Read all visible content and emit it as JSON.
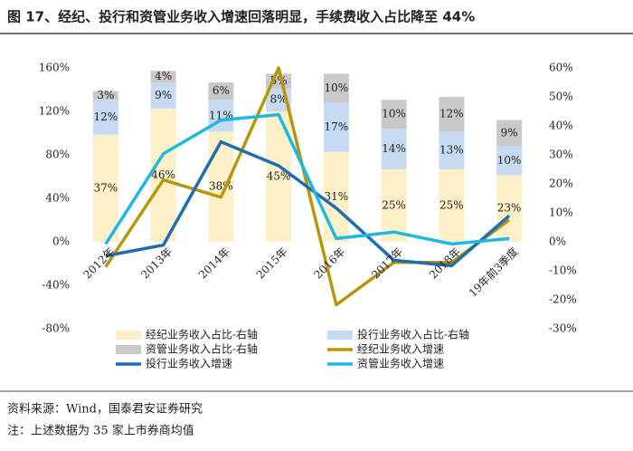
{
  "chart_data": {
    "type": "bar",
    "title": "图 17、经纪、投行和资管业务收入增速回落明显，手续费收入占比降至 44%",
    "source": "资料来源：Wind，国泰君安证券研究",
    "note": "注：上述数据为 35 家上市券商均值",
    "categories": [
      "2012年",
      "2013年",
      "2014年",
      "2015年",
      "2016年",
      "2017年",
      "2018年",
      "19年前3季度"
    ],
    "ylim": [
      -80,
      160
    ],
    "yticks": [
      {
        "value": -80,
        "label": "-80%"
      },
      {
        "value": -40,
        "label": "-40%"
      },
      {
        "value": 0,
        "label": "0%"
      },
      {
        "value": 40,
        "label": "40%"
      },
      {
        "value": 80,
        "label": "80%"
      },
      {
        "value": 120,
        "label": "120%"
      },
      {
        "value": 160,
        "label": "160%"
      }
    ],
    "y2lim": [
      -30,
      60
    ],
    "y2ticks": [
      {
        "value": -30,
        "label": "-30%"
      },
      {
        "value": -20,
        "label": "-20%"
      },
      {
        "value": -10,
        "label": "-10%"
      },
      {
        "value": 0,
        "label": "0%"
      },
      {
        "value": 10,
        "label": "10%"
      },
      {
        "value": 20,
        "label": "20%"
      },
      {
        "value": 30,
        "label": "30%"
      },
      {
        "value": 40,
        "label": "40%"
      },
      {
        "value": 50,
        "label": "50%"
      },
      {
        "value": 60,
        "label": "60%"
      }
    ],
    "series": [
      {
        "name": "经纪业务收入占比-右轴",
        "kind": "bar",
        "axis": "y2",
        "color": "#fdf0c8",
        "values": [
          37,
          46,
          38,
          45,
          31,
          25,
          25,
          23
        ],
        "value_labels": [
          "37%",
          "46%",
          "38%",
          "45%",
          "31%",
          "25%",
          "25%",
          "23%"
        ]
      },
      {
        "name": "投行业务收入占比-右轴",
        "kind": "bar",
        "axis": "y2",
        "color": "#c6daf2",
        "values": [
          12,
          9,
          11,
          8,
          17,
          14,
          13,
          10
        ],
        "value_labels": [
          "12%",
          "9%",
          "11%",
          "8%",
          "17%",
          "14%",
          "13%",
          "10%"
        ]
      },
      {
        "name": "资管业务收入占比-右轴",
        "kind": "bar",
        "axis": "y2",
        "color": "#c9c9c9",
        "values": [
          3,
          4,
          6,
          5,
          10,
          10,
          12,
          9
        ],
        "value_labels": [
          "3%",
          "4%",
          "6%",
          "5%",
          "10%",
          "10%",
          "12%",
          "9%"
        ]
      },
      {
        "name": "经纪业务收入增速",
        "kind": "line",
        "color": "#b8960c",
        "values": [
          -23,
          57,
          41,
          160,
          -58,
          -19,
          -19,
          20
        ]
      },
      {
        "name": "投行业务收入增速",
        "kind": "line",
        "color": "#1f6db0",
        "values": [
          -13,
          -3,
          92,
          70,
          31,
          -17,
          -22,
          24
        ]
      },
      {
        "name": "资管业务收入增速",
        "kind": "line",
        "color": "#1fb8e2",
        "values": [
          -2,
          81,
          112,
          117,
          3,
          9,
          -2,
          3
        ]
      }
    ]
  }
}
